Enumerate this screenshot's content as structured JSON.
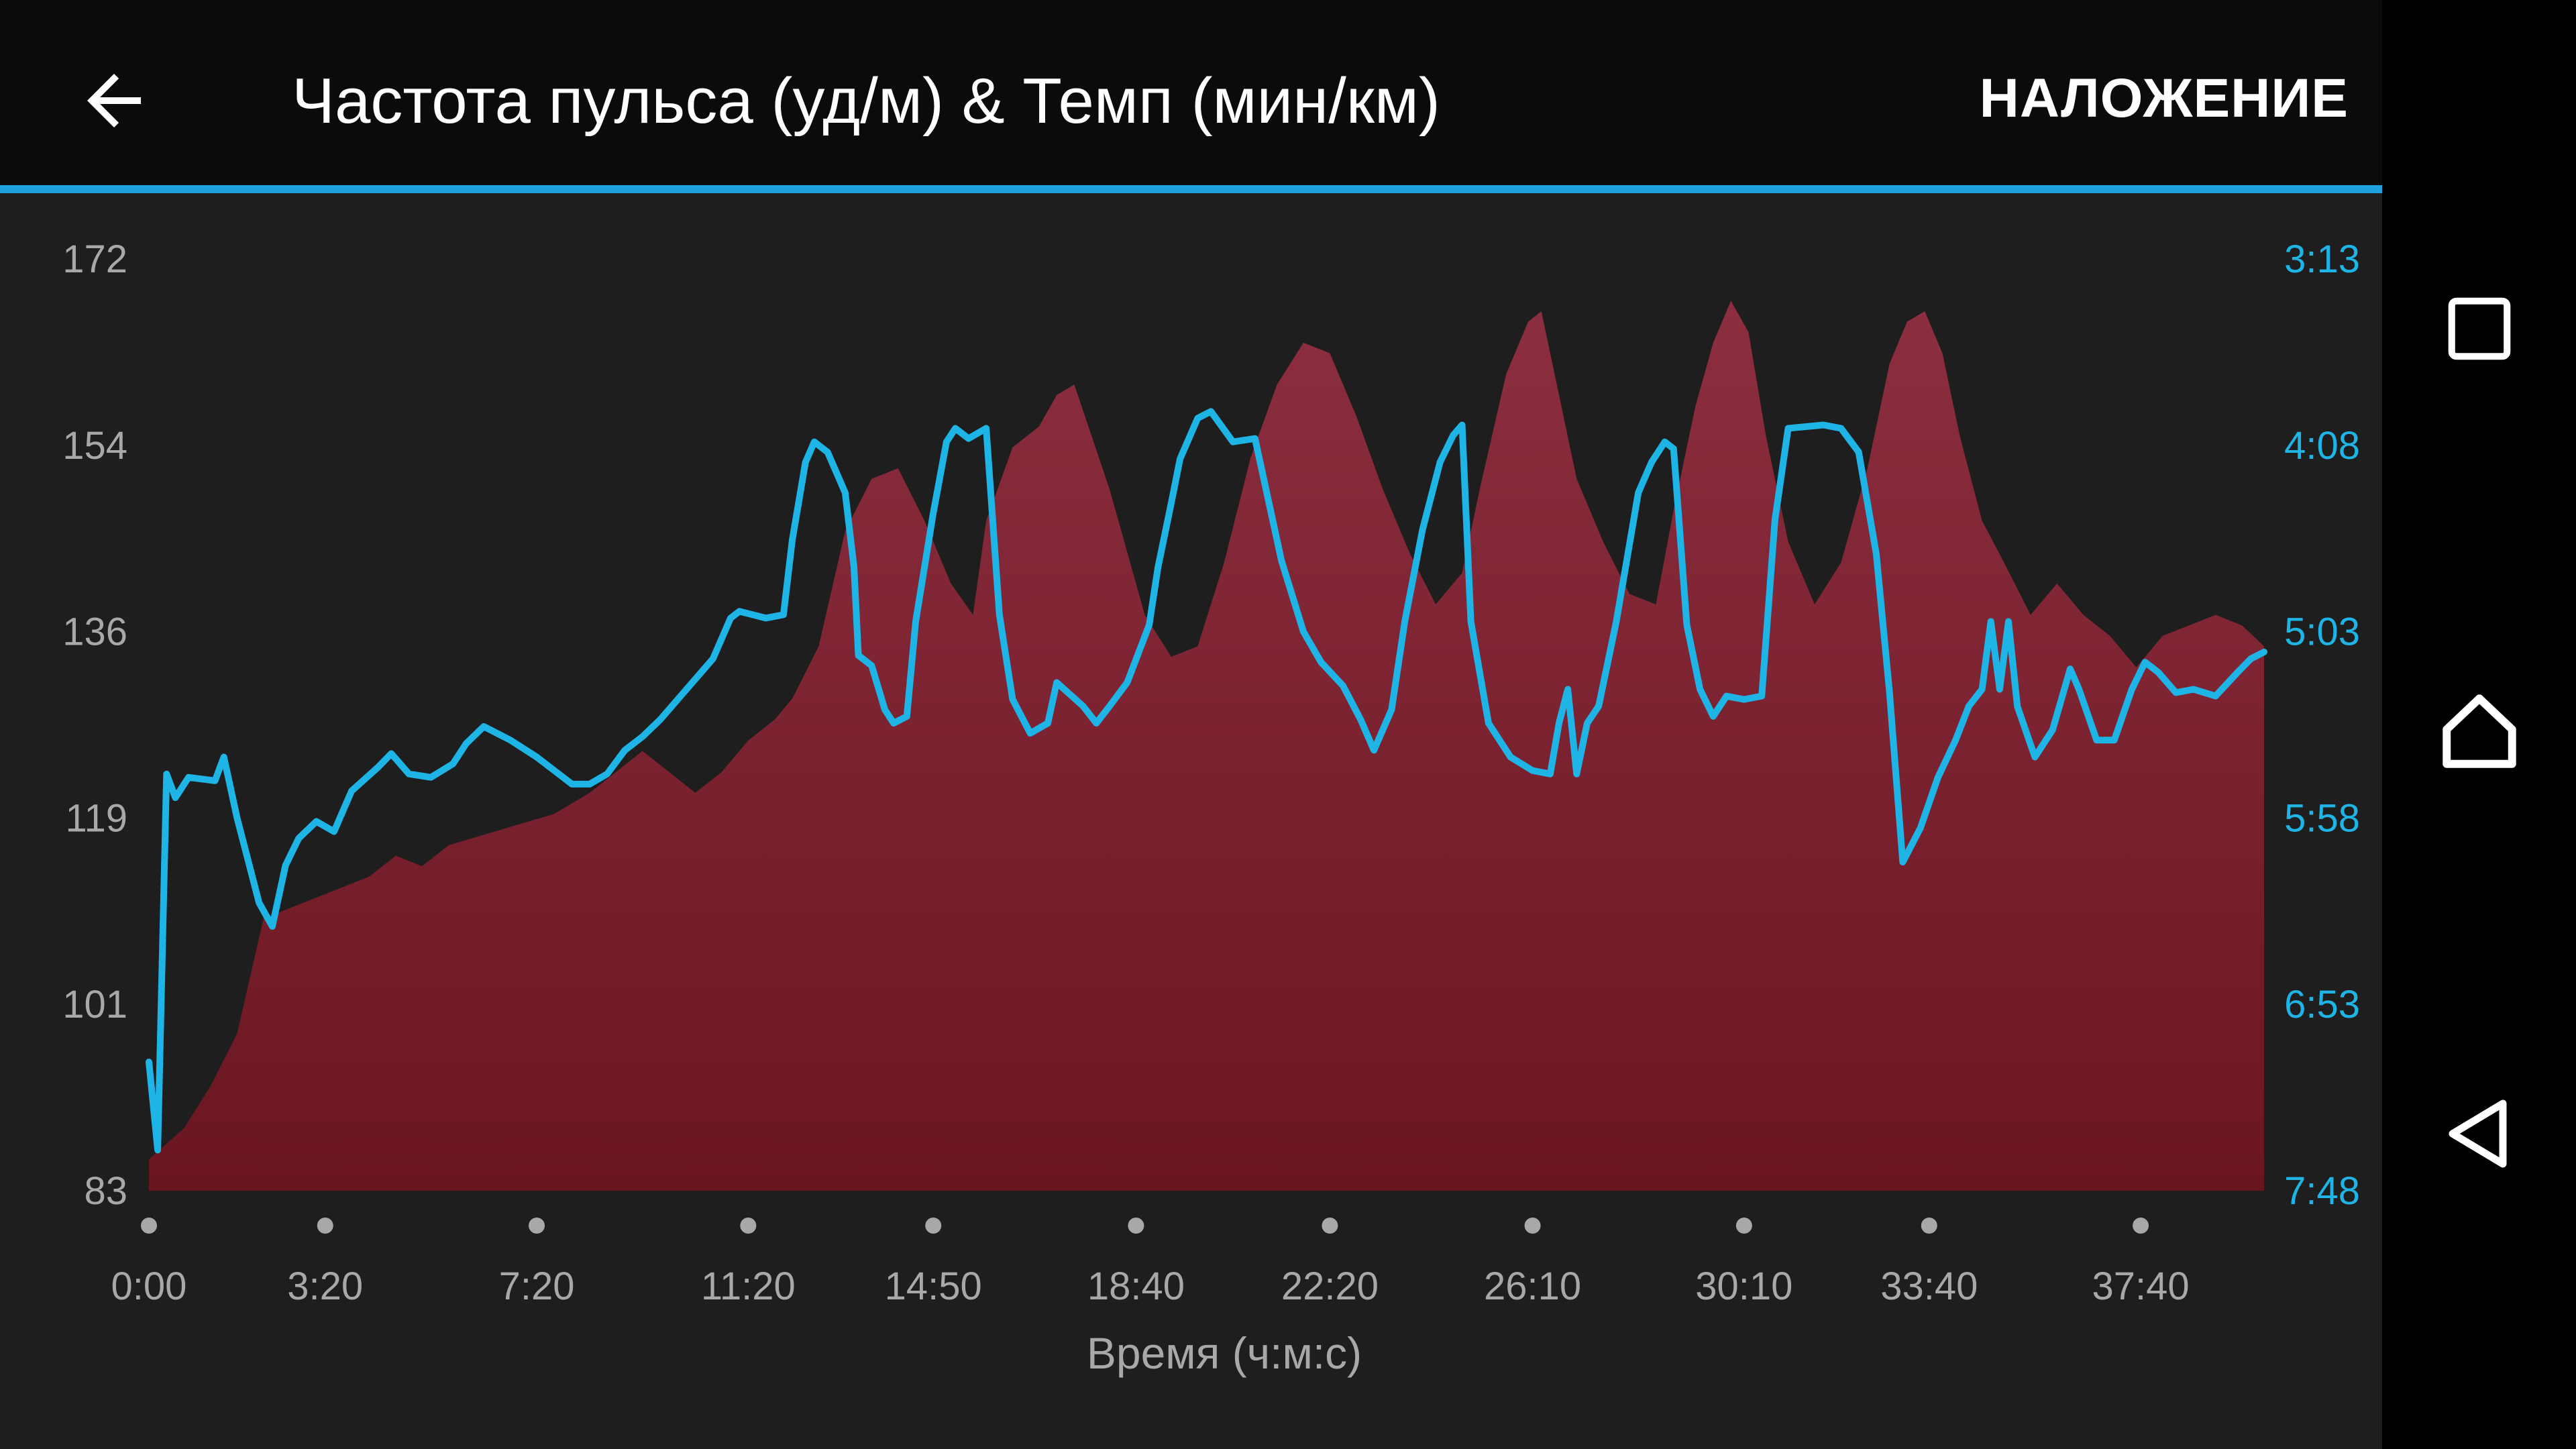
{
  "header": {
    "title": "Частота пульса (уд/м) & Темп (мин/км)",
    "overlay_label": "НАЛОЖЕНИЕ",
    "back_icon": "arrow-left-icon"
  },
  "colors": {
    "accent": "#1ea1dc",
    "heart_rate_fill_top": "#8c2e40",
    "heart_rate_fill_bottom": "#6a1620",
    "pace_line": "#1eb4e6"
  },
  "navbar": {
    "icons": [
      "recent-apps-icon",
      "home-icon",
      "back-icon"
    ]
  },
  "chart_data": {
    "type": "area",
    "xlabel": "Время (ч:м:с)",
    "x_ticks": [
      "0:00",
      "3:20",
      "7:20",
      "11:20",
      "14:50",
      "18:40",
      "22:20",
      "26:10",
      "30:10",
      "33:40",
      "37:40"
    ],
    "y_left_ticks": [
      "172",
      "154",
      "136",
      "119",
      "101",
      "83"
    ],
    "y_right_ticks": [
      "3:13",
      "4:08",
      "5:03",
      "5:58",
      "6:53",
      "7:48"
    ],
    "y_left_range": [
      83,
      172
    ],
    "y_right_range_seconds_per_km": [
      193,
      468
    ],
    "y_right_inverted": true,
    "x_tick_seconds": [
      0,
      200,
      440,
      680,
      890,
      1120,
      1340,
      1570,
      1810,
      2020,
      2260
    ],
    "x_range_seconds": [
      0,
      2400
    ],
    "series": [
      {
        "name": "Частота пульса",
        "unit": "уд/м",
        "style": "area",
        "points": [
          [
            0,
            86
          ],
          [
            40,
            89
          ],
          [
            70,
            93
          ],
          [
            100,
            98
          ],
          [
            130,
            109
          ],
          [
            160,
            110
          ],
          [
            190,
            111
          ],
          [
            220,
            112
          ],
          [
            250,
            113
          ],
          [
            280,
            115
          ],
          [
            310,
            114
          ],
          [
            340,
            116
          ],
          [
            380,
            117
          ],
          [
            420,
            118
          ],
          [
            460,
            119
          ],
          [
            500,
            121
          ],
          [
            530,
            123
          ],
          [
            560,
            125
          ],
          [
            590,
            123
          ],
          [
            620,
            121
          ],
          [
            650,
            123
          ],
          [
            680,
            126
          ],
          [
            710,
            128
          ],
          [
            730,
            130
          ],
          [
            760,
            135
          ],
          [
            790,
            146
          ],
          [
            820,
            151
          ],
          [
            850,
            152
          ],
          [
            880,
            147
          ],
          [
            910,
            141
          ],
          [
            935,
            138
          ],
          [
            950,
            147
          ],
          [
            980,
            154
          ],
          [
            1010,
            156
          ],
          [
            1030,
            159
          ],
          [
            1050,
            160
          ],
          [
            1070,
            155
          ],
          [
            1090,
            150
          ],
          [
            1110,
            144
          ],
          [
            1130,
            138
          ],
          [
            1160,
            134
          ],
          [
            1190,
            135
          ],
          [
            1220,
            143
          ],
          [
            1250,
            153
          ],
          [
            1280,
            160
          ],
          [
            1310,
            164
          ],
          [
            1340,
            163
          ],
          [
            1370,
            157
          ],
          [
            1400,
            150
          ],
          [
            1430,
            144
          ],
          [
            1460,
            139
          ],
          [
            1490,
            142
          ],
          [
            1510,
            150
          ],
          [
            1540,
            161
          ],
          [
            1565,
            166
          ],
          [
            1580,
            167
          ],
          [
            1600,
            159
          ],
          [
            1620,
            151
          ],
          [
            1650,
            145
          ],
          [
            1680,
            140
          ],
          [
            1710,
            139
          ],
          [
            1730,
            148
          ],
          [
            1755,
            158
          ],
          [
            1775,
            164
          ],
          [
            1795,
            168
          ],
          [
            1815,
            165
          ],
          [
            1835,
            155
          ],
          [
            1860,
            145
          ],
          [
            1890,
            139
          ],
          [
            1920,
            143
          ],
          [
            1950,
            152
          ],
          [
            1975,
            162
          ],
          [
            1995,
            166
          ],
          [
            2015,
            167
          ],
          [
            2035,
            163
          ],
          [
            2055,
            155
          ],
          [
            2080,
            147
          ],
          [
            2105,
            143
          ],
          [
            2135,
            138
          ],
          [
            2165,
            141
          ],
          [
            2195,
            138
          ],
          [
            2225,
            136
          ],
          [
            2255,
            133
          ],
          [
            2285,
            136
          ],
          [
            2315,
            137
          ],
          [
            2345,
            138
          ],
          [
            2375,
            137
          ],
          [
            2400,
            135
          ]
        ]
      },
      {
        "name": "Темп",
        "unit": "мин/км",
        "style": "line",
        "points": [
          [
            0,
            430
          ],
          [
            10,
            456
          ],
          [
            20,
            345
          ],
          [
            30,
            352
          ],
          [
            45,
            346
          ],
          [
            75,
            347
          ],
          [
            85,
            340
          ],
          [
            100,
            358
          ],
          [
            125,
            383
          ],
          [
            140,
            390
          ],
          [
            155,
            372
          ],
          [
            170,
            364
          ],
          [
            190,
            359
          ],
          [
            210,
            362
          ],
          [
            230,
            350
          ],
          [
            260,
            343
          ],
          [
            275,
            339
          ],
          [
            295,
            345
          ],
          [
            320,
            346
          ],
          [
            345,
            342
          ],
          [
            360,
            336
          ],
          [
            380,
            331
          ],
          [
            410,
            335
          ],
          [
            440,
            340
          ],
          [
            460,
            344
          ],
          [
            480,
            348
          ],
          [
            500,
            348
          ],
          [
            520,
            345
          ],
          [
            540,
            338
          ],
          [
            560,
            334
          ],
          [
            580,
            329
          ],
          [
            600,
            323
          ],
          [
            640,
            311
          ],
          [
            660,
            299
          ],
          [
            670,
            297
          ],
          [
            700,
            299
          ],
          [
            720,
            298
          ],
          [
            730,
            276
          ],
          [
            745,
            253
          ],
          [
            755,
            247
          ],
          [
            770,
            250
          ],
          [
            790,
            262
          ],
          [
            800,
            284
          ],
          [
            805,
            310
          ],
          [
            820,
            313
          ],
          [
            835,
            326
          ],
          [
            845,
            330
          ],
          [
            860,
            328
          ],
          [
            870,
            300
          ],
          [
            890,
            268
          ],
          [
            905,
            247
          ],
          [
            915,
            243
          ],
          [
            930,
            246
          ],
          [
            950,
            243
          ],
          [
            965,
            298
          ],
          [
            980,
            323
          ],
          [
            1000,
            333
          ],
          [
            1020,
            330
          ],
          [
            1030,
            318
          ],
          [
            1060,
            325
          ],
          [
            1075,
            330
          ],
          [
            1090,
            325
          ],
          [
            1110,
            318
          ],
          [
            1135,
            301
          ],
          [
            1145,
            284
          ],
          [
            1160,
            265
          ],
          [
            1170,
            252
          ],
          [
            1190,
            240
          ],
          [
            1205,
            238
          ],
          [
            1230,
            247
          ],
          [
            1255,
            246
          ],
          [
            1285,
            282
          ],
          [
            1310,
            303
          ],
          [
            1330,
            312
          ],
          [
            1355,
            319
          ],
          [
            1375,
            329
          ],
          [
            1390,
            338
          ],
          [
            1410,
            326
          ],
          [
            1425,
            300
          ],
          [
            1445,
            273
          ],
          [
            1465,
            253
          ],
          [
            1480,
            245
          ],
          [
            1490,
            242
          ],
          [
            1500,
            300
          ],
          [
            1520,
            330
          ],
          [
            1545,
            340
          ],
          [
            1570,
            344
          ],
          [
            1590,
            345
          ],
          [
            1600,
            330
          ],
          [
            1610,
            320
          ],
          [
            1620,
            345
          ],
          [
            1632,
            330
          ],
          [
            1645,
            325
          ],
          [
            1665,
            300
          ],
          [
            1690,
            262
          ],
          [
            1705,
            253
          ],
          [
            1720,
            247
          ],
          [
            1730,
            249
          ],
          [
            1745,
            301
          ],
          [
            1760,
            320
          ],
          [
            1775,
            328
          ],
          [
            1790,
            322
          ],
          [
            1810,
            323
          ],
          [
            1830,
            322
          ],
          [
            1845,
            270
          ],
          [
            1860,
            243
          ],
          [
            1900,
            242
          ],
          [
            1920,
            243
          ],
          [
            1940,
            250
          ],
          [
            1960,
            280
          ],
          [
            1975,
            321
          ],
          [
            1990,
            371
          ],
          [
            2010,
            361
          ],
          [
            2030,
            346
          ],
          [
            2050,
            335
          ],
          [
            2065,
            325
          ],
          [
            2080,
            320
          ],
          [
            2090,
            300
          ],
          [
            2100,
            320
          ],
          [
            2110,
            300
          ],
          [
            2120,
            325
          ],
          [
            2140,
            340
          ],
          [
            2160,
            332
          ],
          [
            2180,
            314
          ],
          [
            2190,
            320
          ],
          [
            2210,
            335
          ],
          [
            2230,
            335
          ],
          [
            2250,
            320
          ],
          [
            2265,
            312
          ],
          [
            2280,
            315
          ],
          [
            2300,
            321
          ],
          [
            2320,
            320
          ],
          [
            2345,
            322
          ],
          [
            2370,
            315
          ],
          [
            2385,
            311
          ],
          [
            2400,
            309
          ]
        ]
      }
    ]
  }
}
